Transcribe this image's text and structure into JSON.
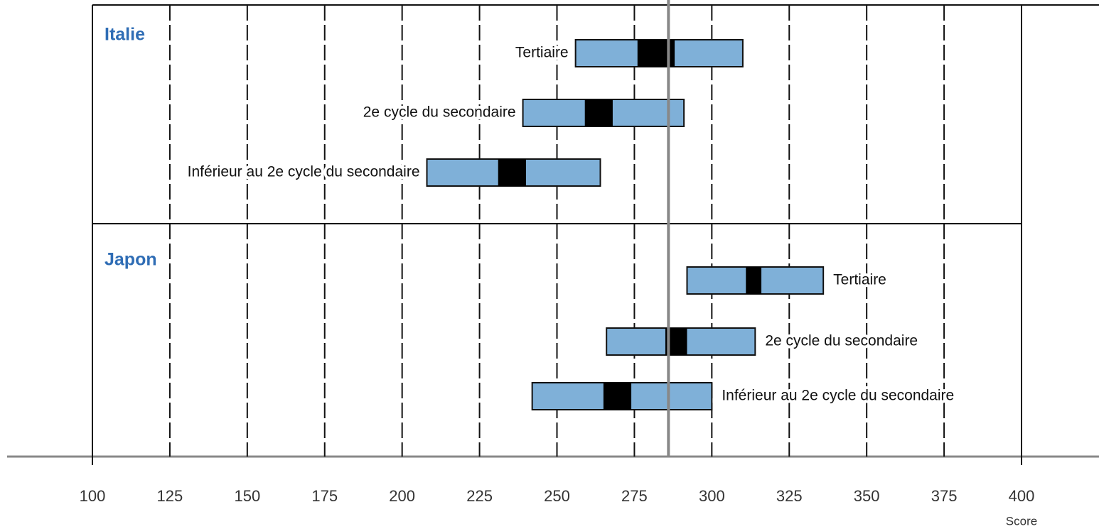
{
  "chart_data": {
    "type": "range_bar",
    "xlabel": "Score",
    "xlim": [
      100,
      400
    ],
    "xticks": [
      100,
      125,
      150,
      175,
      200,
      225,
      250,
      275,
      300,
      325,
      350,
      375,
      400
    ],
    "reference_line": 286,
    "bar_color": "#7fb0d8",
    "ci_color": "#000000",
    "panels": [
      {
        "name": "Italie",
        "label_side": "left",
        "items": [
          {
            "label": "Tertiaire",
            "low": 256,
            "high": 310,
            "ci_low": 276,
            "ci_high": 288
          },
          {
            "label": "2e cycle du secondaire",
            "low": 239,
            "high": 291,
            "ci_low": 259,
            "ci_high": 268
          },
          {
            "label": "Inférieur au 2e cycle du secondaire",
            "low": 208,
            "high": 264,
            "ci_low": 231,
            "ci_high": 240
          }
        ]
      },
      {
        "name": "Japon",
        "label_side": "right",
        "items": [
          {
            "label": "Tertiaire",
            "low": 292,
            "high": 336,
            "ci_low": 311,
            "ci_high": 316
          },
          {
            "label": "2e cycle du secondaire",
            "low": 266,
            "high": 314,
            "ci_low": 285,
            "ci_high": 292
          },
          {
            "label": "Inférieur au 2e cycle du secondaire",
            "low": 242,
            "high": 300,
            "ci_low": 265,
            "ci_high": 274
          }
        ]
      }
    ]
  }
}
